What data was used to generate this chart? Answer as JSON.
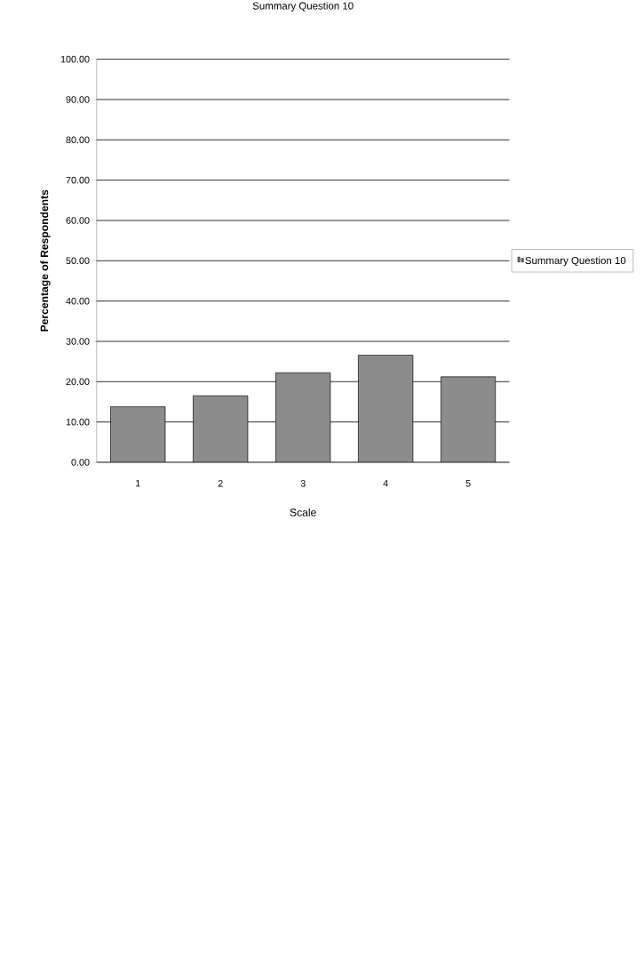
{
  "chart_data": {
    "type": "bar",
    "title": "Summary Question 10",
    "xlabel": "Scale",
    "ylabel": "Percentage of Respondents",
    "categories": [
      "1",
      "2",
      "3",
      "4",
      "5"
    ],
    "series": [
      {
        "name": "Summary Question 10",
        "color": "#8c8c8c",
        "values": [
          13.8,
          16.5,
          22.2,
          26.6,
          21.2
        ]
      }
    ],
    "ylim": [
      0,
      100
    ],
    "yticks": [
      {
        "value": 0,
        "label": "0.00"
      },
      {
        "value": 10,
        "label": "10.00"
      },
      {
        "value": 20,
        "label": "20.00"
      },
      {
        "value": 30,
        "label": "30.00"
      },
      {
        "value": 40,
        "label": "40.00"
      },
      {
        "value": 50,
        "label": "50.00"
      },
      {
        "value": 60,
        "label": "60.00"
      },
      {
        "value": 70,
        "label": "70.00"
      },
      {
        "value": 80,
        "label": "80.00"
      },
      {
        "value": 90,
        "label": "90.00"
      },
      {
        "value": 100,
        "label": "100.00"
      }
    ],
    "grid": "y",
    "legend": "right"
  }
}
